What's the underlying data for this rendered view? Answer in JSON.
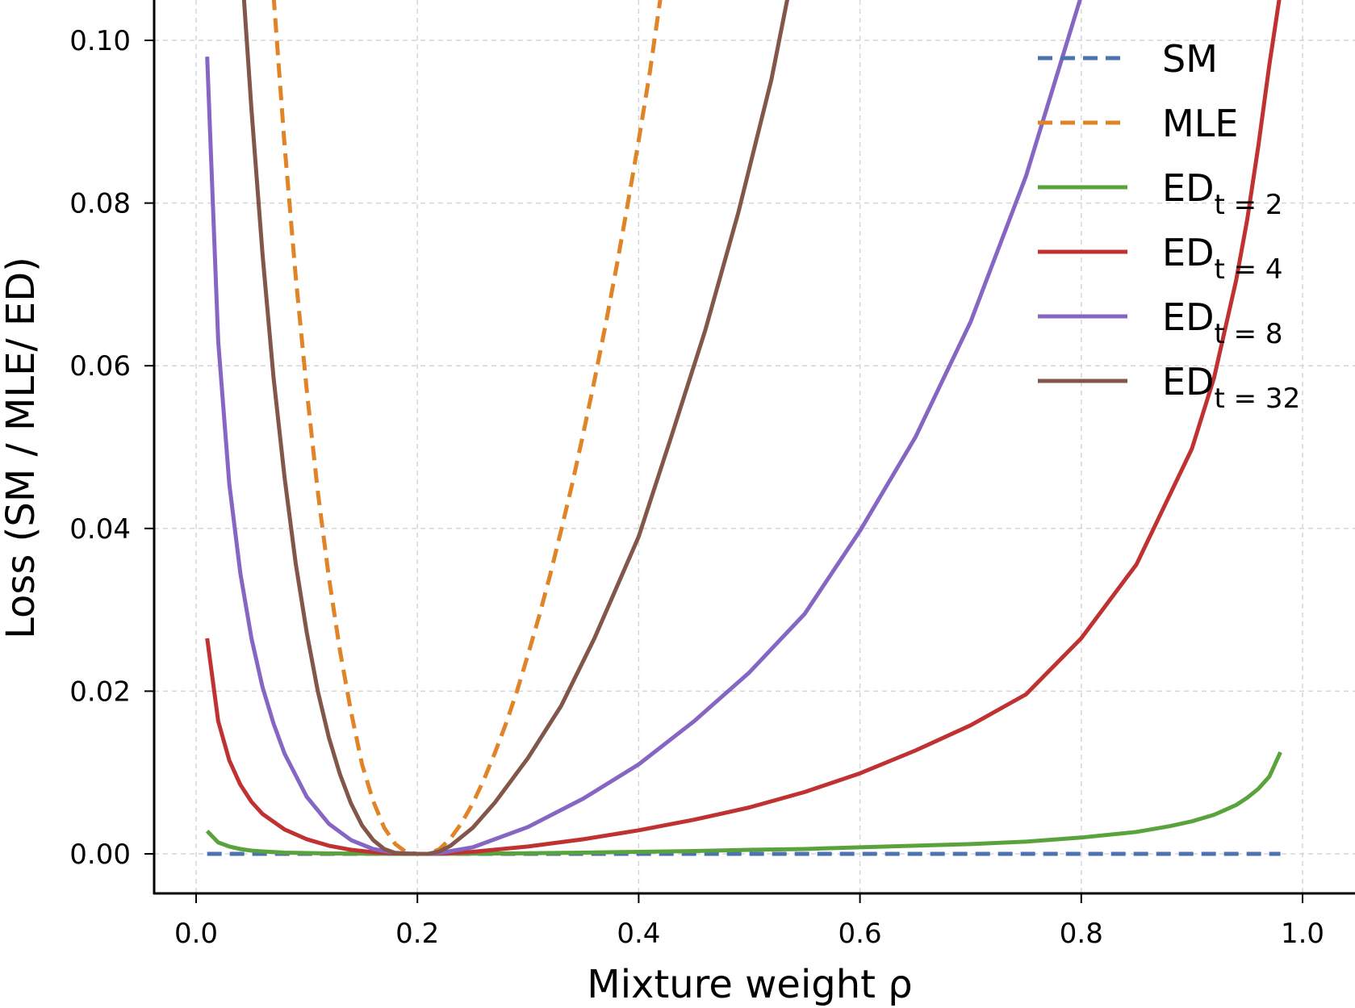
{
  "chart_data": {
    "type": "line",
    "xlabel": "Mixture weight ρ",
    "ylabel": "Loss (SM / MLE/ ED)",
    "xlim": [
      -0.04,
      1.01
    ],
    "ylim": [
      -0.005,
      0.105
    ],
    "xticks": [
      "0.0",
      "0.2",
      "0.4",
      "0.6",
      "0.8",
      "1.0"
    ],
    "yticks": [
      "0.00",
      "0.02",
      "0.04",
      "0.06",
      "0.08",
      "0.10"
    ],
    "grid": true,
    "legend_position": "top-right",
    "series": [
      {
        "name": "SM",
        "legend_main": "SM",
        "legend_sub": "",
        "color": "#4c72b0",
        "dashed": true,
        "x": [
          0.01,
          0.1,
          0.2,
          0.3,
          0.4,
          0.5,
          0.6,
          0.7,
          0.8,
          0.9,
          0.98
        ],
        "y": [
          0,
          0,
          0,
          0,
          0,
          0,
          0,
          0,
          0,
          0,
          0
        ]
      },
      {
        "name": "MLE",
        "legend_main": "MLE",
        "legend_sub": "",
        "color": "#e08427",
        "dashed": true,
        "x": [
          0.07,
          0.08,
          0.09,
          0.1,
          0.11,
          0.12,
          0.13,
          0.14,
          0.15,
          0.16,
          0.17,
          0.18,
          0.19,
          0.2,
          0.21,
          0.22,
          0.23,
          0.24,
          0.25,
          0.26,
          0.27,
          0.28,
          0.29,
          0.3,
          0.31,
          0.32,
          0.33,
          0.34,
          0.35,
          0.36,
          0.37,
          0.38,
          0.39,
          0.4,
          0.41,
          0.42
        ],
        "y": [
          0.1055,
          0.087,
          0.071,
          0.057,
          0.0445,
          0.034,
          0.025,
          0.0175,
          0.011,
          0.0065,
          0.0032,
          0.0012,
          0.0002,
          0.0,
          0.0,
          0.0006,
          0.0019,
          0.0038,
          0.0062,
          0.0091,
          0.0124,
          0.016,
          0.02,
          0.0245,
          0.0292,
          0.0343,
          0.0398,
          0.0455,
          0.0517,
          0.0582,
          0.065,
          0.0722,
          0.0798,
          0.0877,
          0.096,
          0.1055
        ]
      },
      {
        "name": "ED t = 2",
        "legend_main": "ED",
        "legend_sub": "t = 2",
        "color": "#5aa33c",
        "dashed": false,
        "x": [
          0.01,
          0.02,
          0.03,
          0.04,
          0.05,
          0.06,
          0.08,
          0.1,
          0.12,
          0.15,
          0.18,
          0.21,
          0.25,
          0.3,
          0.35,
          0.4,
          0.45,
          0.5,
          0.55,
          0.6,
          0.65,
          0.7,
          0.75,
          0.8,
          0.85,
          0.88,
          0.9,
          0.92,
          0.94,
          0.95,
          0.96,
          0.97,
          0.98
        ],
        "y": [
          0.0028,
          0.0014,
          0.0009,
          0.0006,
          0.0004,
          0.0003,
          0.00015,
          0.0001,
          5e-05,
          2e-05,
          0.0,
          0.0,
          2e-05,
          7e-05,
          0.00015,
          0.00025,
          0.00035,
          0.0005,
          0.0006,
          0.0008,
          0.001,
          0.0012,
          0.0015,
          0.002,
          0.0027,
          0.0034,
          0.004,
          0.0048,
          0.006,
          0.0069,
          0.008,
          0.0095,
          0.0125
        ]
      },
      {
        "name": "ED t = 4",
        "legend_main": "ED",
        "legend_sub": "t = 4",
        "color": "#c03232",
        "dashed": false,
        "x": [
          0.01,
          0.02,
          0.03,
          0.04,
          0.05,
          0.06,
          0.08,
          0.1,
          0.12,
          0.14,
          0.16,
          0.18,
          0.2,
          0.21,
          0.22,
          0.25,
          0.3,
          0.35,
          0.4,
          0.45,
          0.5,
          0.55,
          0.6,
          0.65,
          0.7,
          0.75,
          0.8,
          0.85,
          0.9,
          0.92,
          0.94,
          0.95,
          0.96,
          0.97,
          0.98
        ],
        "y": [
          0.0265,
          0.0163,
          0.0115,
          0.0085,
          0.0064,
          0.0049,
          0.003,
          0.0018,
          0.001,
          0.0005,
          0.0002,
          5e-05,
          0.0,
          0.0,
          3e-05,
          0.00025,
          0.0009,
          0.0018,
          0.0029,
          0.0042,
          0.0057,
          0.0076,
          0.0099,
          0.0127,
          0.0158,
          0.0196,
          0.0265,
          0.0356,
          0.0498,
          0.0585,
          0.0705,
          0.078,
          0.087,
          0.097,
          0.106
        ]
      },
      {
        "name": "ED t = 8",
        "legend_main": "ED",
        "legend_sub": "t = 8",
        "color": "#8666c3",
        "dashed": false,
        "x": [
          0.01,
          0.02,
          0.03,
          0.04,
          0.05,
          0.06,
          0.07,
          0.08,
          0.1,
          0.12,
          0.14,
          0.16,
          0.18,
          0.2,
          0.21,
          0.22,
          0.25,
          0.3,
          0.35,
          0.4,
          0.45,
          0.5,
          0.55,
          0.6,
          0.65,
          0.7,
          0.75,
          0.8
        ],
        "y": [
          0.098,
          0.063,
          0.0455,
          0.0345,
          0.0265,
          0.0205,
          0.016,
          0.0123,
          0.007,
          0.0037,
          0.0017,
          0.0006,
          0.00012,
          0.0,
          0.0,
          0.0001,
          0.0008,
          0.0033,
          0.0068,
          0.011,
          0.0163,
          0.0223,
          0.0295,
          0.0397,
          0.0512,
          0.0654,
          0.0833,
          0.1055
        ]
      },
      {
        "name": "ED t = 32",
        "legend_main": "ED",
        "legend_sub": "t = 32",
        "color": "#82574a",
        "dashed": false,
        "x": [
          0.043,
          0.05,
          0.06,
          0.07,
          0.08,
          0.09,
          0.1,
          0.11,
          0.12,
          0.13,
          0.14,
          0.15,
          0.16,
          0.17,
          0.18,
          0.19,
          0.2,
          0.21,
          0.22,
          0.23,
          0.25,
          0.27,
          0.3,
          0.33,
          0.36,
          0.4,
          0.43,
          0.46,
          0.49,
          0.52,
          0.535
        ],
        "y": [
          0.1055,
          0.0915,
          0.0737,
          0.0585,
          0.0462,
          0.0357,
          0.0272,
          0.02,
          0.0143,
          0.0098,
          0.0062,
          0.0035,
          0.0017,
          0.0006,
          0.0001,
          0.0,
          0.0,
          0.0,
          0.0003,
          0.001,
          0.0032,
          0.0063,
          0.0118,
          0.0182,
          0.0265,
          0.039,
          0.0515,
          0.0643,
          0.0788,
          0.0952,
          0.1055
        ]
      }
    ]
  }
}
